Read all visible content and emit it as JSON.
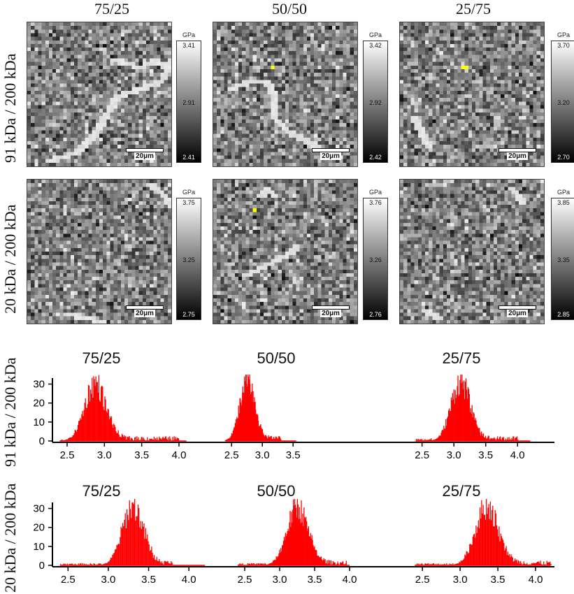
{
  "columns": [
    "75/25",
    "50/50",
    "25/75"
  ],
  "rows": [
    "91 kDa / 200 kDa",
    "20 kDa / 200 kDa"
  ],
  "scale_label": "20µm",
  "colorbar_unit": "GPa",
  "colorbars": [
    [
      {
        "max": "3.41",
        "mid": "2.91",
        "min": "2.41"
      },
      {
        "max": "3.42",
        "mid": "2.92",
        "min": "2.42"
      },
      {
        "max": "3.70",
        "mid": "3.20",
        "min": "2.70"
      }
    ],
    [
      {
        "max": "3.75",
        "mid": "3.25",
        "min": "2.75"
      },
      {
        "max": "3.76",
        "mid": "3.26",
        "min": "2.76"
      },
      {
        "max": "3.85",
        "mid": "3.35",
        "min": "2.85"
      }
    ]
  ],
  "colors": {
    "histogram": "#ff0000",
    "axis": "#000000",
    "marker": "#ffff00"
  },
  "chart_data": [
    {
      "type": "bar",
      "row": "91 kDa / 200 kDa",
      "ylim": [
        0,
        35
      ],
      "yticks": [
        0,
        10,
        20,
        30
      ],
      "panels": [
        {
          "title": "75/25",
          "xlim": [
            2.35,
            4.15
          ],
          "xticks": [
            "2.5",
            "3.0",
            "3.5",
            "4.0"
          ],
          "center": 2.87,
          "sigma": 0.14,
          "peak": 33,
          "tail": [
            3.05,
            4.0
          ]
        },
        {
          "title": "50/50",
          "xlim": [
            2.35,
            3.6
          ],
          "xticks": [
            "2.5",
            "3.0",
            "3.5"
          ],
          "center": 2.75,
          "sigma": 0.12,
          "peak": 34,
          "tail": [
            2.95,
            3.3
          ]
        },
        {
          "title": "25/75",
          "xlim": [
            2.35,
            4.25
          ],
          "xticks": [
            "2.5",
            "3.0",
            "3.5",
            "4.0"
          ],
          "center": 3.1,
          "sigma": 0.15,
          "peak": 34,
          "tail": [
            3.3,
            4.0
          ]
        }
      ]
    },
    {
      "type": "bar",
      "row": "20 kDa / 200 kDa",
      "ylim": [
        0,
        35
      ],
      "yticks": [
        0,
        10,
        20,
        30
      ],
      "panels": [
        {
          "title": "75/25",
          "xlim": [
            2.35,
            4.25
          ],
          "xticks": [
            "2.5",
            "3.0",
            "3.5",
            "4.0"
          ],
          "center": 3.3,
          "sigma": 0.13,
          "peak": 34,
          "tail": [
            3.45,
            3.8
          ]
        },
        {
          "title": "50/50",
          "xlim": [
            2.35,
            4.05
          ],
          "xticks": [
            "2.5",
            "3.0",
            "3.5",
            "4.0"
          ],
          "center": 3.25,
          "sigma": 0.15,
          "peak": 33,
          "tail": [
            3.45,
            3.95
          ]
        },
        {
          "title": "25/75",
          "xlim": [
            2.35,
            4.25
          ],
          "xticks": [
            "2.5",
            "3.0",
            "3.5",
            "4.0"
          ],
          "center": 3.35,
          "sigma": 0.15,
          "peak": 34,
          "tail": [
            3.55,
            4.2
          ]
        }
      ]
    }
  ]
}
